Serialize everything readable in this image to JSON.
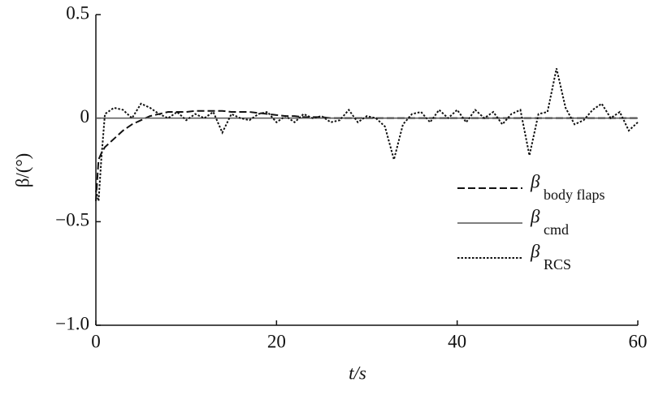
{
  "chart_data": {
    "type": "line",
    "xlabel": "t/s",
    "ylabel": "β/(°)",
    "x": [
      0,
      0.3,
      0.6,
      1,
      2,
      3,
      4,
      5,
      6,
      7,
      8,
      9,
      10,
      11,
      12,
      13,
      14,
      15,
      16,
      17,
      18,
      19,
      20,
      21,
      22,
      23,
      24,
      25,
      26,
      27,
      28,
      29,
      30,
      31,
      32,
      33,
      34,
      35,
      36,
      37,
      38,
      39,
      40,
      41,
      42,
      43,
      44,
      45,
      46,
      47,
      48,
      49,
      50,
      51,
      52,
      53,
      54,
      55,
      56,
      57,
      58,
      59,
      60
    ],
    "series": [
      {
        "name": "β",
        "subscript": "body flaps",
        "color": "#111111",
        "dash": "dashed",
        "values": [
          -0.4,
          -0.2,
          -0.17,
          -0.14,
          -0.1,
          -0.06,
          -0.03,
          -0.01,
          0.01,
          0.02,
          0.03,
          0.03,
          0.03,
          0.035,
          0.035,
          0.035,
          0.035,
          0.03,
          0.03,
          0.03,
          0.025,
          0.02,
          0.015,
          0.01,
          0.01,
          0.005,
          0.005,
          0.005,
          0,
          0,
          0,
          0,
          0,
          0,
          0,
          0,
          0,
          0,
          0,
          0,
          0,
          0,
          0,
          0,
          0,
          0,
          0,
          0,
          0,
          0,
          0,
          0,
          0,
          0,
          0,
          0,
          0,
          0,
          0,
          0,
          0,
          0,
          0
        ]
      },
      {
        "name": "β",
        "subscript": "cmd",
        "color": "#555555",
        "dash": "solid",
        "values": [
          0,
          0,
          0,
          0,
          0,
          0,
          0,
          0,
          0,
          0,
          0,
          0,
          0,
          0,
          0,
          0,
          0,
          0,
          0,
          0,
          0,
          0,
          0,
          0,
          0,
          0,
          0,
          0,
          0,
          0,
          0,
          0,
          0,
          0,
          0,
          0,
          0,
          0,
          0,
          0,
          0,
          0,
          0,
          0,
          0,
          0,
          0,
          0,
          0,
          0,
          0,
          0,
          0,
          0,
          0,
          0,
          0,
          0,
          0,
          0,
          0,
          0,
          0
        ]
      },
      {
        "name": "β",
        "subscript": "RCS",
        "color": "#111111",
        "dash": "dotted",
        "values": [
          -0.35,
          -0.4,
          -0.2,
          0.02,
          0.05,
          0.04,
          0.0,
          0.07,
          0.05,
          0.02,
          0.0,
          0.03,
          -0.01,
          0.02,
          0.0,
          0.03,
          -0.07,
          0.02,
          0.0,
          -0.01,
          0.02,
          0.03,
          -0.02,
          0.01,
          -0.02,
          0.02,
          0.0,
          0.01,
          -0.02,
          -0.01,
          0.04,
          -0.02,
          0.01,
          0.0,
          -0.04,
          -0.2,
          -0.03,
          0.02,
          0.03,
          -0.02,
          0.04,
          0.0,
          0.04,
          -0.02,
          0.04,
          0.0,
          0.03,
          -0.03,
          0.02,
          0.04,
          -0.18,
          0.02,
          0.03,
          0.24,
          0.05,
          -0.03,
          -0.01,
          0.04,
          0.07,
          0.0,
          0.03,
          -0.06,
          -0.02
        ]
      }
    ],
    "xlim": [
      0,
      60
    ],
    "xticks": [
      0,
      20,
      40,
      60
    ],
    "ylim": [
      -1.0,
      0.5
    ],
    "yticks": [
      {
        "value": -1.0,
        "label": "−1.0"
      },
      {
        "value": -0.5,
        "label": "−0.5"
      },
      0,
      0.5
    ],
    "legend": "lower right"
  }
}
